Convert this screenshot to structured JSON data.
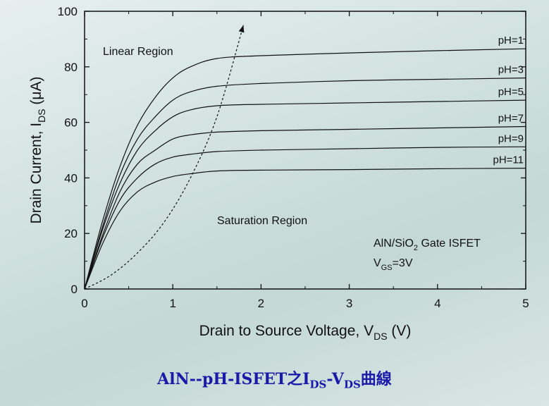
{
  "chart_data": {
    "type": "line",
    "title": "",
    "xlabel": {
      "main": "Drain to Source Voltage, V",
      "sub": "DS",
      "unit": " (V)"
    },
    "ylabel": {
      "main": "Drain Current, I",
      "sub": "DS",
      "unit": " (μA)"
    },
    "xlim": [
      0,
      5
    ],
    "ylim": [
      0,
      100
    ],
    "xticks": [
      "0",
      "1",
      "2",
      "3",
      "4",
      "5"
    ],
    "yticks": [
      "0",
      "20",
      "40",
      "60",
      "80",
      "100"
    ],
    "grid": false,
    "series": [
      {
        "name": "pH=1",
        "x": [
          0,
          0.2,
          0.4,
          0.6,
          0.8,
          1.0,
          1.2,
          1.5,
          2.0,
          3.0,
          4.0,
          5.0
        ],
        "y": [
          0,
          24,
          44,
          59,
          69,
          76,
          80,
          83,
          84,
          85,
          85.8,
          86.5
        ]
      },
      {
        "name": "pH=3",
        "x": [
          0,
          0.2,
          0.4,
          0.6,
          0.8,
          1.0,
          1.2,
          1.5,
          2.0,
          3.0,
          4.0,
          5.0
        ],
        "y": [
          0,
          22,
          41,
          54,
          62,
          68,
          71,
          73,
          74,
          75,
          75.5,
          76
        ]
      },
      {
        "name": "pH=5",
        "x": [
          0,
          0.2,
          0.4,
          0.6,
          0.8,
          1.0,
          1.2,
          1.5,
          2.0,
          3.0,
          4.0,
          5.0
        ],
        "y": [
          0,
          21,
          38,
          50,
          57,
          62,
          64.5,
          66,
          66.5,
          67,
          67.5,
          68
        ]
      },
      {
        "name": "pH=7",
        "x": [
          0,
          0.2,
          0.4,
          0.6,
          0.8,
          1.0,
          1.2,
          1.5,
          2.0,
          3.0,
          4.0,
          5.0
        ],
        "y": [
          0,
          19,
          35,
          45,
          50,
          54,
          55.5,
          56.5,
          57,
          57.5,
          58,
          58.5
        ]
      },
      {
        "name": "pH=9",
        "x": [
          0,
          0.2,
          0.4,
          0.6,
          0.8,
          1.0,
          1.2,
          1.5,
          2.0,
          3.0,
          4.0,
          5.0
        ],
        "y": [
          0,
          18,
          32,
          40,
          45,
          47.5,
          48.5,
          49.5,
          50,
          50.5,
          51,
          51.2
        ]
      },
      {
        "name": "pH=11",
        "x": [
          0,
          0.2,
          0.4,
          0.6,
          0.8,
          1.0,
          1.2,
          1.5,
          2.0,
          3.0,
          4.0,
          5.0
        ],
        "y": [
          0,
          16,
          28,
          35,
          38.5,
          40.5,
          41.5,
          42.5,
          42.8,
          43,
          43.3,
          43.5
        ]
      }
    ],
    "boundary": {
      "x": [
        0,
        0.3,
        0.6,
        0.9,
        1.2,
        1.5,
        1.8
      ],
      "y": [
        0,
        5,
        13,
        24,
        40,
        62,
        95
      ],
      "style": "dashed-arrow"
    },
    "annotations": {
      "linear": "Linear  Region",
      "saturation": "Saturation Region",
      "device_main": "AlN/SiO",
      "device_sub": "2",
      "device_rest": " Gate ISFET",
      "bias_main": "V",
      "bias_sub": "GS",
      "bias_rest": "=3V"
    }
  },
  "caption": {
    "part1": "AlN--pH-ISFET之I",
    "sub1": "DS",
    "part2": "-V",
    "sub2": "DS",
    "part3": "曲線"
  }
}
